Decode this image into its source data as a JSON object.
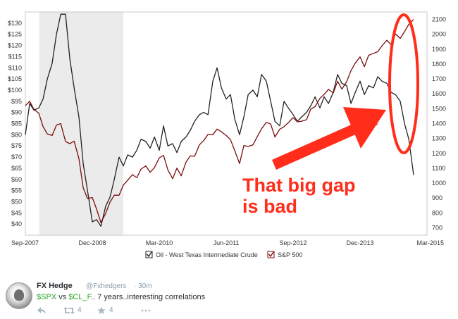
{
  "chart_data": {
    "type": "line",
    "title": "",
    "x_tick_labels": [
      "Sep-2007",
      "Dec-2008",
      "Mar-2010",
      "Jun-2011",
      "Sep-2012",
      "Dec-2013",
      "Mar-2015"
    ],
    "y_left": {
      "ticks": [
        "$40",
        "$45",
        "$50",
        "$55",
        "$60",
        "$65",
        "$70",
        "$75",
        "$80",
        "$85",
        "$90",
        "$95",
        "$100",
        "$105",
        "$110",
        "$115",
        "$120",
        "$125",
        "$130"
      ],
      "range": [
        35,
        135
      ]
    },
    "y_right": {
      "ticks": [
        "700",
        "800",
        "900",
        "1000",
        "1100",
        "1200",
        "1300",
        "1400",
        "1500",
        "1600",
        "1700",
        "1800",
        "1900",
        "2000",
        "2100"
      ],
      "range": [
        650,
        2150
      ]
    },
    "shaded_region": {
      "x_start": 2007.93,
      "x_end": 2009.5,
      "color": "#ebebeb"
    },
    "series": [
      {
        "name": "Oil - West Texas Intermediate Crude",
        "axis": "left",
        "color": "#222222",
        "x": [
          2007.67,
          2007.75,
          2007.83,
          2007.92,
          2008.0,
          2008.08,
          2008.17,
          2008.25,
          2008.33,
          2008.42,
          2008.5,
          2008.58,
          2008.67,
          2008.75,
          2008.83,
          2008.92,
          2009.0,
          2009.08,
          2009.17,
          2009.25,
          2009.33,
          2009.42,
          2009.5,
          2009.58,
          2009.67,
          2009.75,
          2009.83,
          2009.92,
          2010.0,
          2010.08,
          2010.17,
          2010.25,
          2010.33,
          2010.42,
          2010.5,
          2010.58,
          2010.67,
          2010.75,
          2010.83,
          2010.92,
          2011.0,
          2011.08,
          2011.17,
          2011.25,
          2011.33,
          2011.42,
          2011.5,
          2011.58,
          2011.67,
          2011.75,
          2011.83,
          2011.92,
          2012.0,
          2012.08,
          2012.17,
          2012.25,
          2012.33,
          2012.42,
          2012.5,
          2012.58,
          2012.67,
          2012.75,
          2012.83,
          2012.92,
          2013.0,
          2013.08,
          2013.17,
          2013.25,
          2013.33,
          2013.42,
          2013.5,
          2013.58,
          2013.67,
          2013.75,
          2013.83,
          2013.92,
          2014.0,
          2014.08,
          2014.17,
          2014.25,
          2014.33,
          2014.42,
          2014.5,
          2014.58,
          2014.67,
          2014.75,
          2014.83,
          2014.92
        ],
        "values": [
          80,
          94,
          91,
          92,
          96,
          105,
          112,
          125,
          134,
          134,
          114,
          101,
          88,
          67,
          55,
          41,
          42,
          39,
          48,
          52,
          60,
          70,
          66,
          71,
          70,
          73,
          78,
          77,
          74,
          79,
          73,
          84,
          75,
          76,
          72,
          77,
          79,
          82,
          86,
          89,
          90,
          89,
          104,
          110,
          101,
          96,
          98,
          87,
          80,
          88,
          98,
          100,
          97,
          107,
          104,
          95,
          86,
          84,
          95,
          92,
          89,
          86,
          88,
          90,
          93,
          97,
          92,
          97,
          94,
          99,
          107,
          103,
          102,
          94,
          99,
          104,
          98,
          102,
          101,
          106,
          104,
          103,
          99,
          98,
          95,
          85,
          78,
          62
        ]
      },
      {
        "name": "S&P 500",
        "axis": "right",
        "color": "#7a0c0c",
        "x": [
          2007.67,
          2007.75,
          2007.83,
          2007.92,
          2008.0,
          2008.08,
          2008.17,
          2008.25,
          2008.33,
          2008.42,
          2008.5,
          2008.58,
          2008.67,
          2008.75,
          2008.83,
          2008.92,
          2009.0,
          2009.08,
          2009.17,
          2009.25,
          2009.33,
          2009.42,
          2009.5,
          2009.58,
          2009.67,
          2009.75,
          2009.83,
          2009.92,
          2010.0,
          2010.08,
          2010.17,
          2010.25,
          2010.33,
          2010.42,
          2010.5,
          2010.58,
          2010.67,
          2010.75,
          2010.83,
          2010.92,
          2011.0,
          2011.08,
          2011.17,
          2011.25,
          2011.33,
          2011.42,
          2011.5,
          2011.58,
          2011.67,
          2011.75,
          2011.83,
          2011.92,
          2012.0,
          2012.08,
          2012.17,
          2012.25,
          2012.33,
          2012.42,
          2012.5,
          2012.58,
          2012.67,
          2012.75,
          2012.83,
          2012.92,
          2013.0,
          2013.08,
          2013.17,
          2013.25,
          2013.33,
          2013.42,
          2013.5,
          2013.58,
          2013.67,
          2013.75,
          2013.83,
          2013.92,
          2014.0,
          2014.08,
          2014.17,
          2014.25,
          2014.33,
          2014.42,
          2014.5,
          2014.58,
          2014.67,
          2014.75,
          2014.83,
          2014.92
        ],
        "values": [
          1520,
          1550,
          1495,
          1470,
          1380,
          1330,
          1320,
          1390,
          1400,
          1280,
          1265,
          1282,
          1165,
          968,
          896,
          903,
          825,
          735,
          797,
          872,
          919,
          919,
          987,
          1020,
          1057,
          1036,
          1095,
          1115,
          1073,
          1104,
          1169,
          1187,
          1089,
          1030,
          1101,
          1049,
          1141,
          1183,
          1180,
          1257,
          1286,
          1327,
          1325,
          1363,
          1345,
          1320,
          1292,
          1218,
          1131,
          1253,
          1246,
          1257,
          1312,
          1365,
          1408,
          1397,
          1310,
          1362,
          1379,
          1406,
          1440,
          1412,
          1416,
          1426,
          1498,
          1514,
          1569,
          1597,
          1630,
          1606,
          1685,
          1632,
          1681,
          1756,
          1806,
          1848,
          1782,
          1859,
          1872,
          1883,
          1923,
          1960,
          1930,
          2003,
          1972,
          2018,
          2067,
          2100
        ]
      }
    ],
    "legend": {
      "position": "bottom",
      "entries": [
        "Oil - West Texas Intermediate Crude",
        "S&P 500"
      ]
    },
    "annotation": {
      "line1": "That big gap",
      "line2": "is bad",
      "color": "#ff2d1a"
    },
    "grid": false
  },
  "tweet": {
    "name": "FX Hedge",
    "handle": "@Fxhedgers",
    "separator": "·",
    "time": "30m",
    "text_ticker1": "$SPX",
    "text_vs": " vs ",
    "text_ticker2": "$CL_F",
    "text_rest": ".. 7 years..interesting correlations",
    "retweets": "4",
    "favorites": "4"
  }
}
